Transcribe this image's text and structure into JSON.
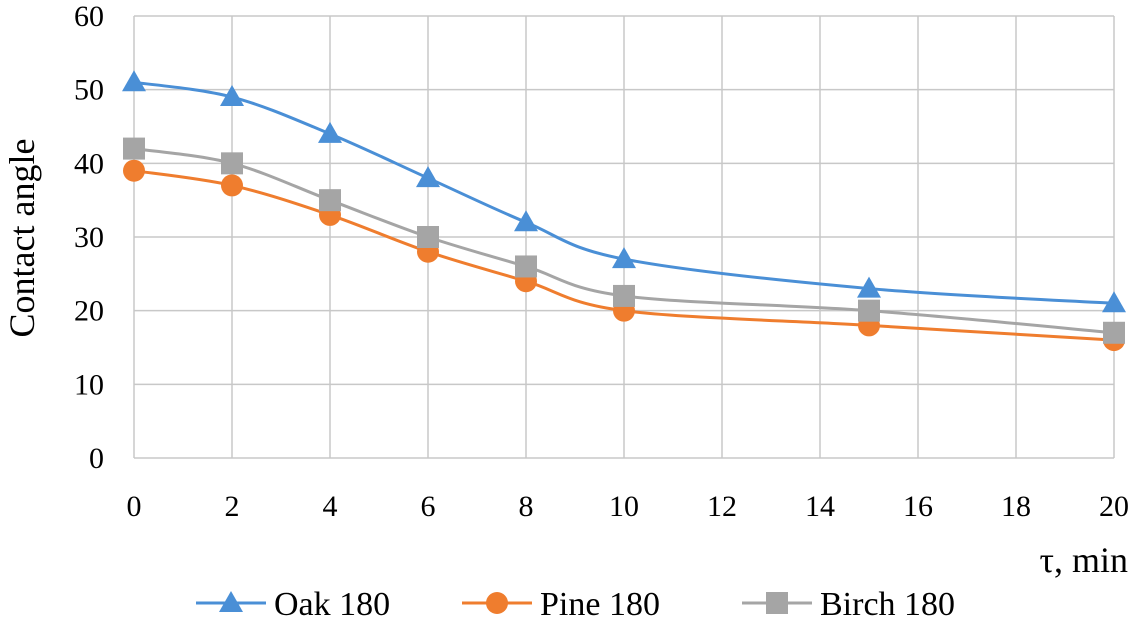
{
  "chart_data": {
    "type": "line",
    "title": "",
    "xlabel": "τ, min",
    "ylabel": "Contact angle",
    "xlim": [
      0,
      20
    ],
    "ylim": [
      0,
      60
    ],
    "x_ticks": [
      "0",
      "2",
      "4",
      "6",
      "8",
      "10",
      "12",
      "14",
      "16",
      "18",
      "20"
    ],
    "y_ticks": [
      "0",
      "10",
      "20",
      "30",
      "40",
      "50",
      "60"
    ],
    "grid": true,
    "legend_position": "bottom",
    "x": [
      0,
      2,
      4,
      6,
      8,
      10,
      15,
      20
    ],
    "series": [
      {
        "name": "Oak 180",
        "marker": "triangle",
        "color": "#4a8fd6",
        "values": [
          51,
          49,
          44,
          38,
          32,
          27,
          23,
          21
        ]
      },
      {
        "name": "Pine 180",
        "marker": "circle",
        "color": "#ef7d2e",
        "values": [
          39,
          37,
          33,
          28,
          24,
          20,
          18,
          16
        ]
      },
      {
        "name": "Birch 180",
        "marker": "square",
        "color": "#a5a5a5",
        "values": [
          42,
          40,
          35,
          30,
          26,
          22,
          20,
          17
        ]
      }
    ]
  }
}
